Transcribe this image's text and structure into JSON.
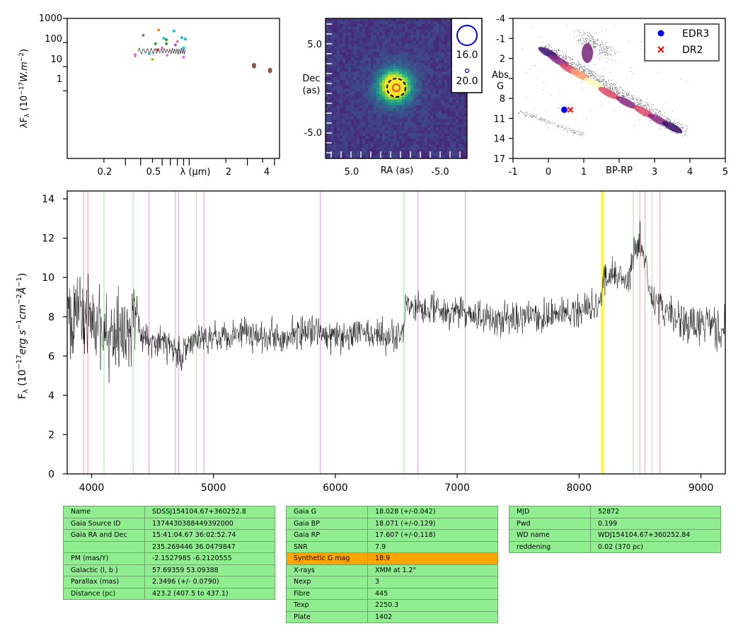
{
  "sed": {
    "ylabel": "λF_λ (10^-17 W.m^-2)",
    "xlabel": "λ (μm)",
    "yticks": [
      "1000",
      "100",
      "10",
      "1"
    ],
    "xticks": [
      "0.2",
      "0.5",
      "2",
      "4"
    ],
    "xscale": "log",
    "yscale": "log"
  },
  "cutout": {
    "ylabel_1": "Dec",
    "ylabel_2": "(as)",
    "xlabel": "RA (as)",
    "xticks": [
      "5.0",
      "-5.0"
    ],
    "yticks": [
      "5.0",
      "-5.0"
    ],
    "legend": [
      "16.0",
      "20.0"
    ]
  },
  "hrd": {
    "ylabel_1": "Abs",
    "ylabel_2": "G",
    "xlabel": "BP-RP",
    "xticks": [
      "-1",
      "0",
      "1",
      "3",
      "4",
      "5"
    ],
    "yticks": [
      "-4",
      "-1",
      "2",
      "8",
      "11",
      "14",
      "17"
    ],
    "legend": [
      {
        "label": "EDR3",
        "color": "#0000ff",
        "marker": "circle"
      },
      {
        "label": "DR2",
        "color": "#ff0000",
        "marker": "x"
      }
    ],
    "points": [
      {
        "name": "EDR3",
        "bp_rp": 0.45,
        "abs_g": 9.7
      },
      {
        "name": "DR2",
        "bp_rp": 0.62,
        "abs_g": 9.7
      }
    ]
  },
  "spectrum": {
    "ylabel": "F_λ (10^-17 erg s^-1 cm^-2 Å^-1)",
    "xticks": [
      "4000",
      "5000",
      "6000",
      "7000",
      "8000",
      "9000"
    ],
    "yticks": [
      "0",
      "2",
      "4",
      "6",
      "8",
      "10",
      "12",
      "14"
    ]
  },
  "chart_data": [
    {
      "type": "scatter",
      "xscale": "log",
      "yscale": "log",
      "xlabel": "λ (μm)",
      "ylabel": "λF_λ (10^-17 W.m^-2)",
      "points": [
        {
          "x": 0.36,
          "y": 28,
          "color": "#e377c2"
        },
        {
          "x": 0.36,
          "y": 32,
          "color": "#e377c2"
        },
        {
          "x": 0.42,
          "y": 200,
          "color": "#7f7f7f"
        },
        {
          "x": 0.47,
          "y": 35,
          "color": "#17becf"
        },
        {
          "x": 0.5,
          "y": 20,
          "color": "#bcbd22"
        },
        {
          "x": 0.53,
          "y": 90,
          "color": "#2ca02c"
        },
        {
          "x": 0.55,
          "y": 50,
          "color": "#d62728"
        },
        {
          "x": 0.56,
          "y": 330,
          "color": "#ff7f0e"
        },
        {
          "x": 0.6,
          "y": 60,
          "color": "#e377c2"
        },
        {
          "x": 0.62,
          "y": 150,
          "color": "#17becf"
        },
        {
          "x": 0.65,
          "y": 90,
          "color": "#2ca02c"
        },
        {
          "x": 0.65,
          "y": 130,
          "color": "#2ca02c"
        },
        {
          "x": 0.66,
          "y": 30,
          "color": "#e377c2"
        },
        {
          "x": 0.75,
          "y": 300,
          "color": "#17becf"
        },
        {
          "x": 0.77,
          "y": 80,
          "color": "#9467bd"
        },
        {
          "x": 0.8,
          "y": 110,
          "color": "#e377c2"
        },
        {
          "x": 0.87,
          "y": 160,
          "color": "#17becf"
        },
        {
          "x": 0.9,
          "y": 60,
          "color": "#17becf"
        },
        {
          "x": 0.9,
          "y": 25,
          "color": "#e377c2"
        },
        {
          "x": 0.93,
          "y": 140,
          "color": "#17becf"
        },
        {
          "x": 3.4,
          "y": 11,
          "color": "#8c564b"
        },
        {
          "x": 4.6,
          "y": 7,
          "color": "#8c564b"
        }
      ]
    },
    {
      "type": "heatmap",
      "xlabel": "RA (as)",
      "ylabel": "Dec (as)",
      "source_center": [
        0,
        0
      ]
    },
    {
      "type": "scatter",
      "xlabel": "BP-RP",
      "ylabel": "Abs G",
      "xlim": [
        -1,
        5
      ],
      "ylim": [
        17,
        -4
      ],
      "series": [
        {
          "name": "EDR3",
          "x": [
            0.45
          ],
          "y": [
            9.7
          ]
        },
        {
          "name": "DR2",
          "x": [
            0.62
          ],
          "y": [
            9.7
          ]
        }
      ]
    },
    {
      "type": "line",
      "xlim": [
        3800,
        9200
      ],
      "ylim": [
        0,
        14.4
      ],
      "xlabel": "",
      "ylabel": "F_λ (10^-17 erg s^-1 cm^-2 Å^-1)",
      "x": [
        3800,
        3850,
        3900,
        3950,
        4000,
        4050,
        4100,
        4150,
        4200,
        4300,
        4350,
        4400,
        4500,
        4600,
        4700,
        4750,
        4800,
        4900,
        5000,
        5100,
        5200,
        5300,
        5400,
        5500,
        5600,
        5700,
        5800,
        5880,
        5900,
        6000,
        6100,
        6200,
        6300,
        6400,
        6500,
        6560,
        6580,
        6600,
        6700,
        6800,
        6900,
        7000,
        7100,
        7200,
        7300,
        7400,
        7500,
        7600,
        7700,
        7800,
        7900,
        8000,
        8100,
        8180,
        8200,
        8300,
        8400,
        8450,
        8500,
        8550,
        8600,
        8700,
        8800,
        8900,
        9000,
        9100,
        9200
      ],
      "y": [
        8.5,
        7.5,
        8.3,
        7.8,
        8.0,
        7.6,
        7.3,
        7.0,
        7.2,
        7.3,
        8.0,
        7.0,
        6.8,
        6.7,
        6.3,
        6.0,
        6.6,
        6.9,
        7.1,
        7.0,
        7.3,
        7.2,
        7.0,
        7.1,
        7.0,
        7.2,
        7.1,
        7.3,
        7.0,
        7.0,
        6.9,
        7.2,
        7.0,
        7.1,
        7.0,
        7.5,
        9.2,
        8.5,
        8.4,
        8.6,
        8.1,
        8.3,
        8.1,
        8.0,
        7.7,
        8.0,
        7.8,
        8.1,
        8.0,
        8.0,
        8.2,
        8.3,
        8.6,
        8.8,
        9.8,
        10.3,
        9.6,
        11.2,
        12.0,
        10.5,
        8.8,
        8.3,
        7.9,
        7.5,
        7.6,
        7.5,
        7.2
      ],
      "lines": [
        {
          "x": 3934,
          "color": "#f4a0a8"
        },
        {
          "x": 3969,
          "color": "#f4a0a8"
        },
        {
          "x": 4102,
          "color": "#9ee89e"
        },
        {
          "x": 4341,
          "color": "#9ee89e"
        },
        {
          "x": 4471,
          "color": "#dda0dd"
        },
        {
          "x": 4686,
          "color": "#dda0dd"
        },
        {
          "x": 4713,
          "color": "#dda0dd"
        },
        {
          "x": 4861,
          "color": "#9ee89e"
        },
        {
          "x": 4922,
          "color": "#dda0dd"
        },
        {
          "x": 5876,
          "color": "#dda0dd"
        },
        {
          "x": 6563,
          "color": "#9ee89e"
        },
        {
          "x": 6678,
          "color": "#dda0dd"
        },
        {
          "x": 7065,
          "color": "#dda0dd"
        },
        {
          "x": 8183,
          "color": "#ffff00"
        },
        {
          "x": 8195,
          "color": "#ffff00"
        },
        {
          "x": 8446,
          "color": "#9ee89e"
        },
        {
          "x": 8498,
          "color": "#f4a0a8"
        },
        {
          "x": 8542,
          "color": "#f4a0a8"
        },
        {
          "x": 8598,
          "color": "#9ee89e"
        },
        {
          "x": 8662,
          "color": "#f4a0a8"
        }
      ]
    }
  ],
  "tables": {
    "t1": [
      {
        "k": "Name",
        "v": "SDSSJ154104.67+360252.8"
      },
      {
        "k": "Gaia Source ID",
        "v": "1374430388449392000"
      },
      {
        "k": "Gaia RA and Dec",
        "v": "15:41:04.67    36:02:52.74"
      },
      {
        "k": "",
        "v": "235.269446    36.0479847"
      },
      {
        "k": "PM (mas/Y)",
        "v": "-2.1527985    -6.2120555"
      },
      {
        "k": "Galactic (l, b )",
        "v": "57.69359    53.09388"
      },
      {
        "k": "Parallax (mas)",
        "v": "2.3496 (+/- 0.0790)"
      },
      {
        "k": "Distance (pc)",
        "v": "423.2 (407.5 to 437.1)"
      }
    ],
    "t2": [
      {
        "k": "Gaia G",
        "v": "18.028 (+/-0.042)"
      },
      {
        "k": "Gaia BP",
        "v": "18.071 (+/-0.129)"
      },
      {
        "k": "Gaia RP",
        "v": "17.607 (+/-0.118)"
      },
      {
        "k": "SNR",
        "v": "7.9"
      },
      {
        "k": "Synthetic G mag",
        "v": "18.9"
      },
      {
        "k": "X-rays",
        "v": "XMM at 1.2\""
      },
      {
        "k": "Nexp",
        "v": "3"
      },
      {
        "k": "Fibre",
        "v": "445"
      },
      {
        "k": "Texp",
        "v": "2250.3"
      },
      {
        "k": "Plate",
        "v": "1402"
      }
    ],
    "t3": [
      {
        "k": "MJD",
        "v": "52872"
      },
      {
        "k": "Pwd",
        "v": "0.199"
      },
      {
        "k": "WD name",
        "v": "WDJ154104.67+360252.84"
      },
      {
        "k": "reddening",
        "v": "0.02 (370 pc)"
      }
    ]
  }
}
